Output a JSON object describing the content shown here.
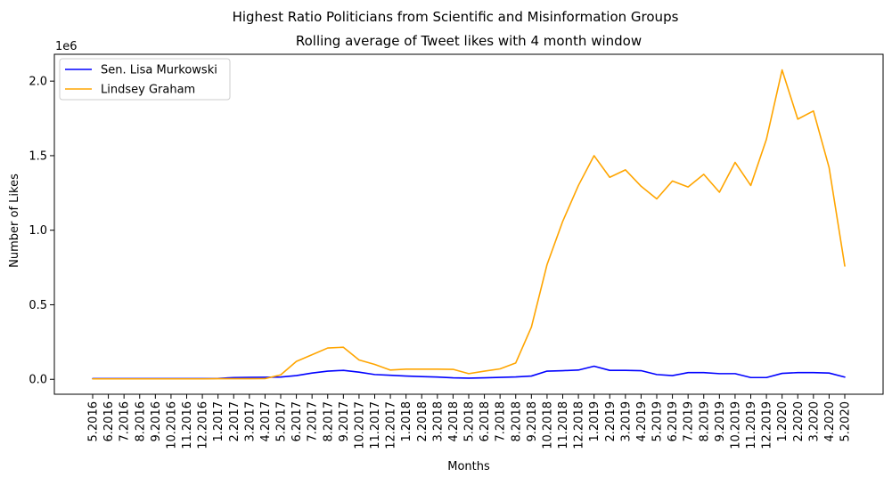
{
  "chart_data": {
    "type": "line",
    "suptitle": "Highest Ratio Politicians from Scientific and Misinformation Groups",
    "title": "Rolling average of Tweet likes with 4 month window",
    "xlabel": "Months",
    "ylabel": "Number of Likes",
    "y_offset_label": "1e6",
    "ylim": [
      -0.1,
      2.18
    ],
    "y_ticks": [
      0.0,
      0.5,
      1.0,
      1.5,
      2.0
    ],
    "y_tick_labels": [
      "0.0",
      "0.5",
      "1.0",
      "1.5",
      "2.0"
    ],
    "legend_placement": "top-left",
    "grid": false,
    "categories": [
      "5.2016",
      "6.2016",
      "7.2016",
      "8.2016",
      "9.2016",
      "10.2016",
      "11.2016",
      "12.2016",
      "1.2017",
      "2.2017",
      "3.2017",
      "4.2017",
      "5.2017",
      "6.2017",
      "7.2017",
      "8.2017",
      "9.2017",
      "10.2017",
      "11.2017",
      "12.2017",
      "1.2018",
      "2.2018",
      "3.2018",
      "4.2018",
      "5.2018",
      "6.2018",
      "7.2018",
      "8.2018",
      "9.2018",
      "10.2018",
      "11.2018",
      "12.2018",
      "1.2019",
      "2.2019",
      "3.2019",
      "4.2019",
      "5.2019",
      "6.2019",
      "7.2019",
      "8.2019",
      "9.2019",
      "10.2019",
      "11.2019",
      "12.2019",
      "1.2020",
      "2.2020",
      "3.2020",
      "4.2020",
      "5.2020"
    ],
    "series": [
      {
        "name": "Sen. Lisa Murkowski",
        "color": "#0000ff",
        "values": [
          0.005,
          0.005,
          0.005,
          0.005,
          0.005,
          0.005,
          0.005,
          0.005,
          0.006,
          0.012,
          0.013,
          0.014,
          0.015,
          0.025,
          0.042,
          0.055,
          0.06,
          0.048,
          0.032,
          0.027,
          0.022,
          0.018,
          0.015,
          0.01,
          0.008,
          0.01,
          0.013,
          0.016,
          0.022,
          0.055,
          0.058,
          0.062,
          0.088,
          0.06,
          0.06,
          0.058,
          0.032,
          0.025,
          0.045,
          0.045,
          0.038,
          0.038,
          0.012,
          0.012,
          0.04,
          0.045,
          0.045,
          0.042,
          0.015
        ]
      },
      {
        "name": "Lindsey Graham",
        "color": "#ffa500",
        "values": [
          0.003,
          0.003,
          0.003,
          0.003,
          0.003,
          0.003,
          0.003,
          0.003,
          0.004,
          0.004,
          0.004,
          0.005,
          0.03,
          0.12,
          0.165,
          0.21,
          0.215,
          0.13,
          0.1,
          0.062,
          0.068,
          0.068,
          0.068,
          0.067,
          0.038,
          0.055,
          0.07,
          0.11,
          0.35,
          0.77,
          1.06,
          1.3,
          1.5,
          1.355,
          1.405,
          1.295,
          1.21,
          1.33,
          1.29,
          1.375,
          1.255,
          1.455,
          1.3,
          1.61,
          2.075,
          1.745,
          1.8,
          1.42,
          0.76
        ]
      }
    ]
  }
}
